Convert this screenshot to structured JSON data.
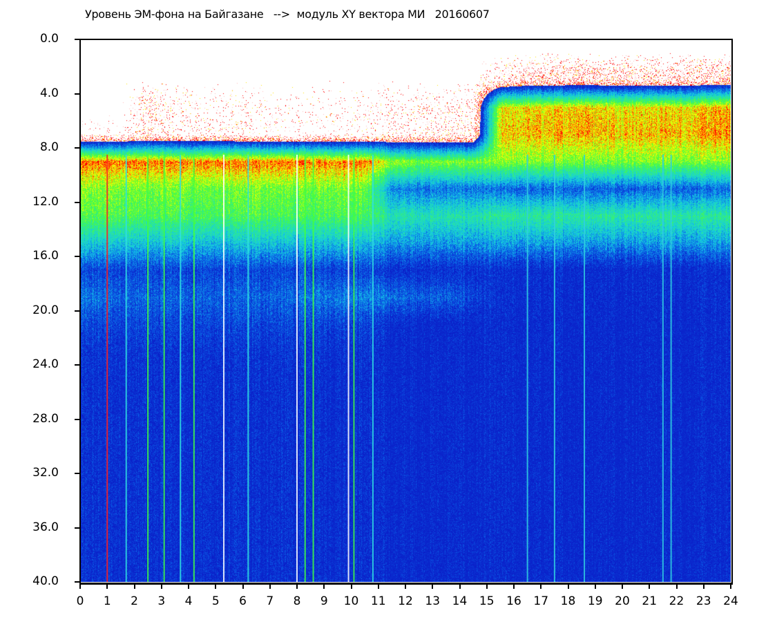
{
  "chart_data": {
    "type": "heatmap",
    "title": "Уровень ЭМ-фона на Байгазане   -->  модуль XY вектора МИ   20160607",
    "xlabel": "",
    "ylabel": "",
    "xlim": [
      0,
      24
    ],
    "ylim": [
      40,
      0
    ],
    "y_inverted": true,
    "grid": false,
    "x_ticks": [
      "0",
      "1",
      "2",
      "3",
      "4",
      "5",
      "6",
      "7",
      "8",
      "9",
      "10",
      "11",
      "12",
      "13",
      "14",
      "15",
      "16",
      "17",
      "18",
      "19",
      "20",
      "21",
      "22",
      "23",
      "24"
    ],
    "y_ticks": [
      "0.0",
      "4.0",
      "8.0",
      "12.0",
      "16.0",
      "20.0",
      "24.0",
      "28.0",
      "32.0",
      "36.0",
      "40.0"
    ],
    "colormap": {
      "0": "#ffffff",
      "1": "#0a1ec8",
      "1.5": "#0a5ae6",
      "2": "#14c8e6",
      "2.5": "#28e6a0",
      "3": "#50ff32",
      "3.5": "#ffff00",
      "4": "#ff0000"
    },
    "value_scale_note_levels": "0 none, 1 blue, 2 cyan, 3 green, 3.5 yellow, 4 red; below 1 = sparse red dots density",
    "x_bins_hours": [
      0,
      1,
      2,
      3,
      4,
      5,
      6,
      7,
      8,
      9,
      10,
      11,
      12,
      13,
      14,
      15,
      16,
      17,
      18,
      19,
      20,
      21,
      22,
      23
    ],
    "y_bins": [
      0,
      2,
      4,
      6,
      8,
      10,
      12,
      14,
      16,
      18,
      20,
      22,
      24,
      26,
      28,
      30,
      32,
      34,
      36,
      38
    ],
    "matrix": [
      [
        0,
        0,
        0,
        0,
        0,
        0,
        0,
        0,
        0,
        0,
        0,
        0,
        0,
        0,
        0,
        0,
        0,
        0,
        0,
        0,
        0,
        0,
        0,
        0
      ],
      [
        0,
        0,
        0,
        0,
        0,
        0,
        0,
        0,
        0,
        0,
        0,
        0,
        0,
        0,
        0,
        0.2,
        0.4,
        0.4,
        0.5,
        0.4,
        0.4,
        0.4,
        0.4,
        0.5
      ],
      [
        0,
        0,
        0.25,
        0.1,
        0.08,
        0.08,
        0.08,
        0.05,
        0.05,
        0.05,
        0.05,
        0.1,
        0.1,
        0.1,
        0.15,
        3.4,
        3.5,
        3.5,
        3.6,
        3.5,
        3.5,
        3.5,
        3.5,
        3.6
      ],
      [
        0.05,
        0.05,
        0.2,
        0.1,
        0.1,
        0.1,
        0.05,
        0.05,
        0.05,
        0.05,
        0.08,
        0.15,
        0.15,
        0.15,
        0.2,
        3.5,
        3.6,
        3.6,
        3.7,
        3.6,
        3.6,
        3.6,
        3.6,
        3.7
      ],
      [
        3.8,
        3.8,
        3.8,
        3.8,
        3.8,
        3.8,
        3.8,
        3.8,
        3.8,
        3.8,
        3.8,
        3.2,
        3.1,
        3.1,
        3.1,
        3.1,
        3.1,
        3.1,
        3.1,
        3.1,
        3.1,
        3.1,
        3.1,
        3.1
      ],
      [
        3.1,
        3.1,
        3.0,
        3.1,
        3.0,
        3.0,
        3.1,
        3.0,
        3.0,
        3.1,
        3.0,
        1.7,
        1.6,
        1.6,
        1.6,
        1.5,
        1.5,
        1.5,
        1.5,
        1.5,
        1.5,
        1.5,
        1.5,
        1.5
      ],
      [
        2.9,
        2.9,
        2.8,
        2.9,
        2.8,
        2.8,
        2.9,
        2.8,
        2.8,
        2.9,
        2.8,
        2.4,
        2.4,
        2.4,
        2.4,
        2.5,
        2.5,
        2.5,
        2.5,
        2.5,
        2.5,
        2.5,
        2.5,
        2.5
      ],
      [
        2.1,
        2.1,
        2.0,
        2.1,
        2.0,
        2.0,
        2.1,
        2.0,
        2.0,
        2.1,
        2.0,
        1.8,
        1.8,
        1.8,
        1.8,
        1.8,
        1.8,
        1.8,
        1.8,
        1.8,
        1.8,
        1.8,
        1.8,
        1.8
      ],
      [
        1.3,
        1.3,
        1.3,
        1.3,
        1.3,
        1.3,
        1.3,
        1.3,
        1.3,
        1.3,
        1.3,
        1.1,
        1.1,
        1.1,
        1.1,
        1.05,
        1.05,
        1.05,
        1.05,
        1.05,
        1.05,
        1.05,
        1.05,
        1.05
      ],
      [
        1.6,
        1.5,
        1.5,
        1.5,
        1.5,
        1.5,
        1.5,
        1.5,
        1.6,
        1.7,
        1.7,
        1.6,
        1.5,
        1.5,
        1.3,
        1.05,
        1.05,
        1.05,
        1.05,
        1.05,
        1.05,
        1.05,
        1.05,
        1.05
      ],
      [
        1.3,
        1.3,
        1.3,
        1.3,
        1.3,
        1.3,
        1.3,
        1.3,
        1.3,
        1.3,
        1.3,
        1.05,
        1,
        1,
        1,
        1,
        1,
        1,
        1,
        1,
        1,
        1,
        1,
        1
      ],
      [
        1.15,
        1.15,
        1.15,
        1.15,
        1.15,
        1.15,
        1.15,
        1.15,
        1.15,
        1.15,
        1.15,
        1,
        1,
        1,
        1,
        1,
        1,
        1,
        1,
        1,
        1,
        1,
        1,
        1
      ],
      [
        1.1,
        1.1,
        1.1,
        1.1,
        1.1,
        1.1,
        1.1,
        1.1,
        1.1,
        1.1,
        1.1,
        1,
        1,
        1,
        1,
        1,
        1,
        1,
        1,
        1,
        1,
        1,
        1,
        1
      ],
      [
        1.1,
        1.1,
        1.1,
        1.1,
        1.1,
        1.1,
        1.1,
        1.1,
        1.1,
        1.1,
        1.1,
        1,
        1,
        1,
        1,
        1,
        1,
        1,
        1,
        1,
        1,
        1,
        1,
        1
      ],
      [
        1.1,
        1.1,
        1.1,
        1.1,
        1.1,
        1.1,
        1.1,
        1.1,
        1.1,
        1.1,
        1.1,
        1,
        1,
        1,
        1,
        1,
        1,
        1,
        1,
        1,
        1,
        1,
        1,
        1
      ],
      [
        1.1,
        1.1,
        1.1,
        1.1,
        1.1,
        1.1,
        1.1,
        1.1,
        1.1,
        1.1,
        1.1,
        1,
        1,
        1,
        1,
        1,
        1,
        1,
        1,
        1,
        1,
        1,
        1,
        1
      ],
      [
        1.1,
        1.1,
        1.1,
        1.1,
        1.1,
        1.1,
        1.1,
        1.1,
        1.1,
        1.1,
        1.1,
        1,
        1,
        1,
        1,
        1,
        1,
        1,
        1,
        1,
        1,
        1,
        1,
        1
      ],
      [
        1.1,
        1.1,
        1.1,
        1.1,
        1.1,
        1.1,
        1.1,
        1.1,
        1.1,
        1.1,
        1.1,
        1,
        1,
        1,
        1,
        1,
        1,
        1,
        1,
        1,
        1,
        1,
        1,
        1
      ],
      [
        1.1,
        1.1,
        1.1,
        1.1,
        1.1,
        1.1,
        1.1,
        1.1,
        1.1,
        1.1,
        1.1,
        1,
        1,
        1,
        1,
        1,
        1,
        1,
        1,
        1,
        1,
        1,
        1,
        1
      ],
      [
        1.1,
        1.1,
        1.1,
        1.1,
        1.1,
        1.1,
        1.1,
        1.1,
        1.1,
        1.1,
        1.1,
        1,
        1,
        1,
        1,
        1,
        1,
        1,
        1,
        1,
        1,
        1,
        1,
        1
      ]
    ],
    "streaks": [
      {
        "x": 1.0,
        "color": "#ff2020"
      },
      {
        "x": 1.7,
        "color": "#30e0e0"
      },
      {
        "x": 2.5,
        "color": "#40ff40"
      },
      {
        "x": 3.1,
        "color": "#40ff40"
      },
      {
        "x": 3.7,
        "color": "#30e0e0"
      },
      {
        "x": 4.2,
        "color": "#40ff40"
      },
      {
        "x": 5.3,
        "color": "#ffffff"
      },
      {
        "x": 6.2,
        "color": "#30e0e0"
      },
      {
        "x": 8.0,
        "color": "#ffffff"
      },
      {
        "x": 8.3,
        "color": "#40ff40"
      },
      {
        "x": 8.6,
        "color": "#40ff40"
      },
      {
        "x": 9.9,
        "color": "#ffffff"
      },
      {
        "x": 10.1,
        "color": "#40ff40"
      },
      {
        "x": 10.8,
        "color": "#30e0e0"
      },
      {
        "x": 16.5,
        "color": "#30d0e0"
      },
      {
        "x": 17.5,
        "color": "#30d0e0"
      },
      {
        "x": 18.6,
        "color": "#30d0e0"
      },
      {
        "x": 21.5,
        "color": "#30d0e0"
      },
      {
        "x": 21.8,
        "color": "#30d0e0"
      }
    ]
  }
}
